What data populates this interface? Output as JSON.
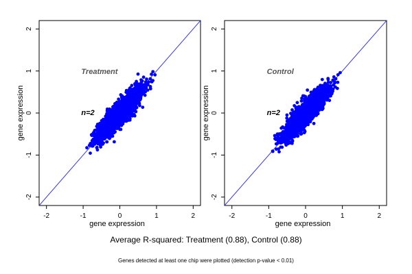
{
  "chart_data": [
    {
      "type": "scatter",
      "panel": "Treatment",
      "title": "",
      "annotation": "Treatment",
      "count_label": "n=2",
      "xlabel": "gene expression",
      "ylabel": "gene expression",
      "xlim": [
        -2.2,
        2.2
      ],
      "ylim": [
        -2.2,
        2.2
      ],
      "xticks": [
        "-2",
        "-1",
        "0",
        "1",
        "2"
      ],
      "yticks": [
        "-2",
        "-1",
        "0",
        "1",
        "2"
      ],
      "reference_line": {
        "slope": 1,
        "intercept": 0
      },
      "point_cloud": {
        "center_x": 0.0,
        "center_y": 0.0,
        "x_range": [
          -0.9,
          1.2
        ],
        "y_range": [
          -1.0,
          1.2
        ],
        "correlation": 0.88
      },
      "point_color": "#0000ff",
      "line_color": "#3333ff",
      "grid": false
    },
    {
      "type": "scatter",
      "panel": "Control",
      "title": "",
      "annotation": "Control",
      "count_label": "n=2",
      "xlabel": "gene expression",
      "ylabel": "gene expression",
      "xlim": [
        -2.2,
        2.2
      ],
      "ylim": [
        -2.2,
        2.2
      ],
      "xticks": [
        "-2",
        "-1",
        "0",
        "1",
        "2"
      ],
      "yticks": [
        "-2",
        "-1",
        "0",
        "1",
        "2"
      ],
      "reference_line": {
        "slope": 1,
        "intercept": 0
      },
      "point_cloud": {
        "center_x": 0.0,
        "center_y": 0.0,
        "x_range": [
          -0.9,
          1.2
        ],
        "y_range": [
          -1.0,
          1.2
        ],
        "correlation": 0.88
      },
      "point_color": "#0000ff",
      "line_color": "#3333ff",
      "grid": false
    }
  ],
  "captions": {
    "main": "Average R-squared: Treatment (0.88), Control (0.88)",
    "sub": "Genes detected at least one chip were plotted (detection p-value < 0.01)"
  }
}
